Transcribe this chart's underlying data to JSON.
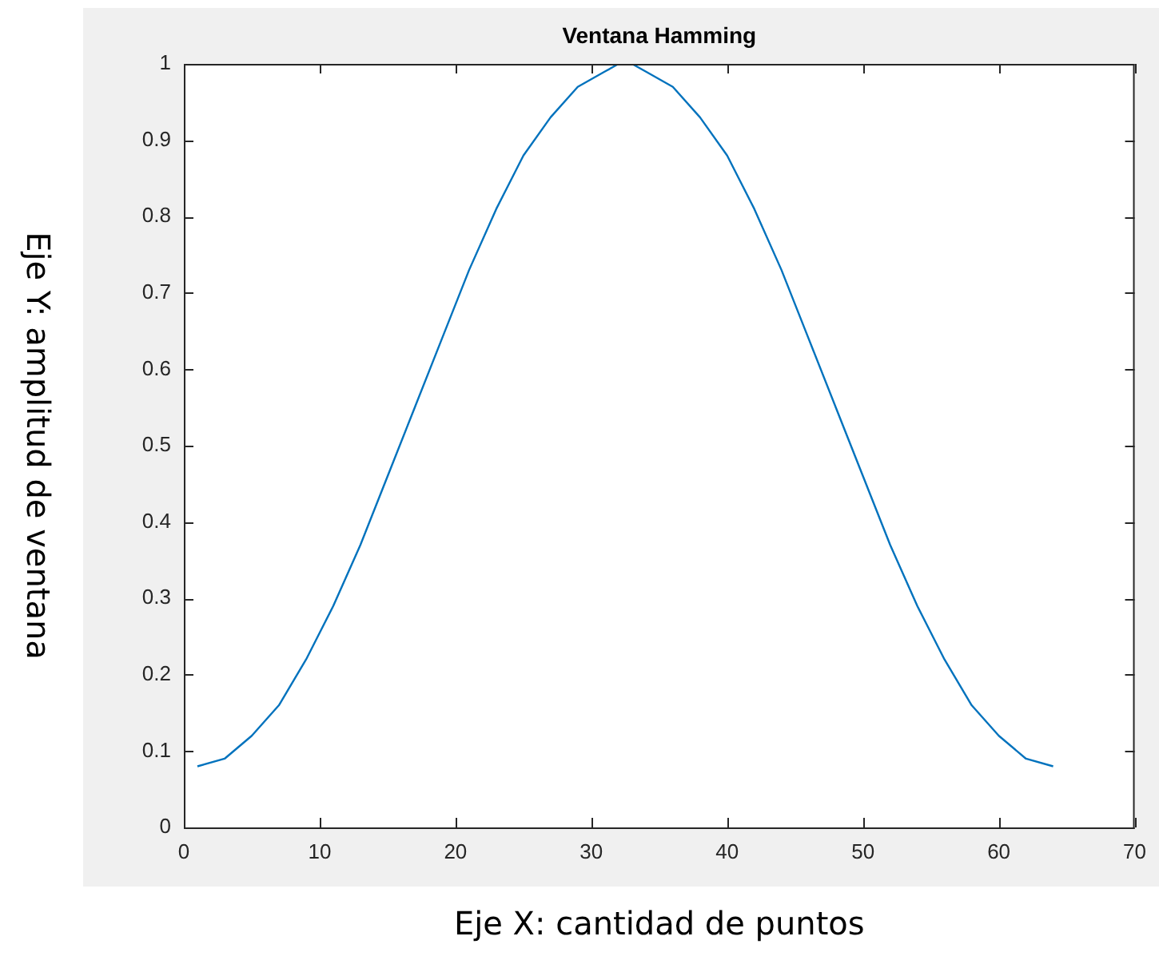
{
  "chart_data": {
    "type": "line",
    "title": "Ventana Hamming",
    "xlabel": "Eje X: cantidad de puntos",
    "ylabel": "Eje Y: amplitud de ventana",
    "x": [
      1,
      3,
      5,
      7,
      9,
      11,
      13,
      15,
      17,
      19,
      21,
      23,
      25,
      27,
      29,
      31,
      32,
      33,
      34,
      36,
      38,
      40,
      42,
      44,
      46,
      48,
      50,
      52,
      54,
      56,
      58,
      60,
      62,
      64
    ],
    "series": [
      {
        "color": "#0072bd",
        "values": [
          0.08,
          0.09,
          0.12,
          0.16,
          0.22,
          0.29,
          0.37,
          0.46,
          0.55,
          0.64,
          0.73,
          0.81,
          0.88,
          0.93,
          0.97,
          0.99,
          1.0,
          1.0,
          0.99,
          0.97,
          0.93,
          0.88,
          0.81,
          0.73,
          0.64,
          0.55,
          0.46,
          0.37,
          0.29,
          0.22,
          0.16,
          0.12,
          0.09,
          0.08
        ]
      }
    ],
    "xlim": [
      0,
      70
    ],
    "xticks": [
      0,
      10,
      20,
      30,
      40,
      50,
      60,
      70
    ],
    "ylim": [
      0,
      1
    ],
    "yticks": [
      0,
      0.1,
      0.2,
      0.3,
      0.4,
      0.5,
      0.6,
      0.7,
      0.8,
      0.9,
      1
    ],
    "grid": false,
    "legend": false,
    "marker": "none",
    "line_style": "solid"
  }
}
